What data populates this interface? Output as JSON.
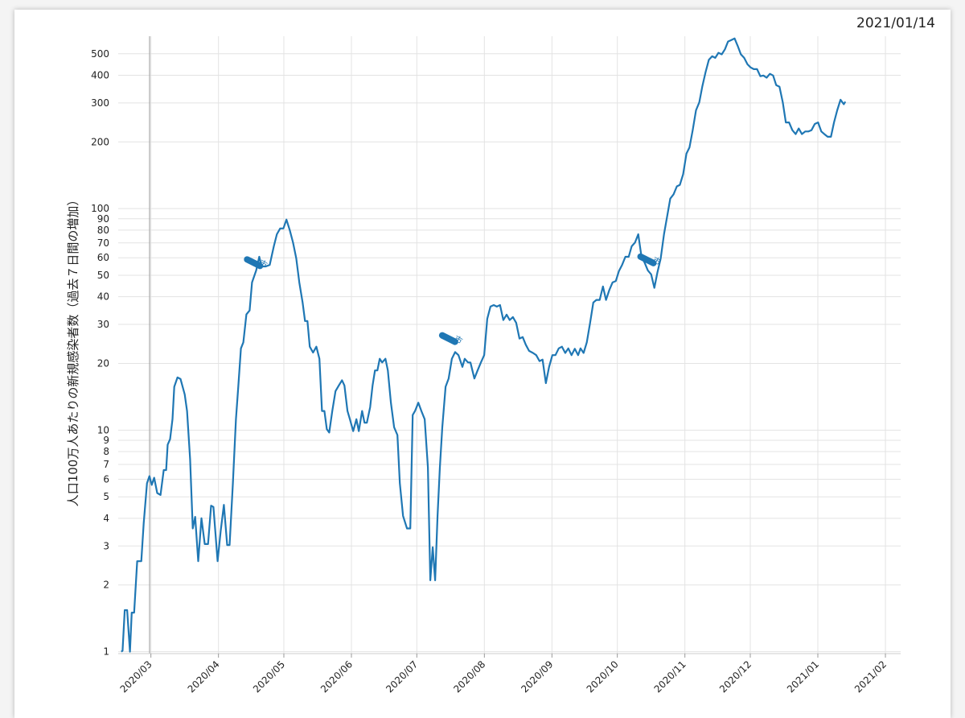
{
  "chart_data": {
    "type": "line",
    "title": "2021/01/14",
    "y_label": "人口100万人あたりの新規感染者数（過去７日間の増加）",
    "log_y": true,
    "grid": true,
    "xlim": [
      -15,
      344
    ],
    "ylim": [
      0.98,
      600
    ],
    "xticks": [
      {
        "value": 0,
        "label": "2020/03"
      },
      {
        "value": 31,
        "label": "2020/04"
      },
      {
        "value": 61,
        "label": "2020/05"
      },
      {
        "value": 92,
        "label": "2020/06"
      },
      {
        "value": 122,
        "label": "2020/07"
      },
      {
        "value": 153,
        "label": "2020/08"
      },
      {
        "value": 184,
        "label": "2020/09"
      },
      {
        "value": 214,
        "label": "2020/10"
      },
      {
        "value": 245,
        "label": "2020/11"
      },
      {
        "value": 275,
        "label": "2020/12"
      },
      {
        "value": 306,
        "label": "2021/01"
      },
      {
        "value": 337,
        "label": "2021/02"
      }
    ],
    "yticks": [
      1,
      2,
      3,
      4,
      5,
      6,
      7,
      8,
      9,
      10,
      20,
      30,
      40,
      50,
      60,
      70,
      80,
      90,
      100,
      200,
      300,
      400,
      500
    ],
    "x": [
      -13.6,
      -13,
      -12,
      -10.9,
      -9.6,
      -8.8,
      -7.7,
      -6.3,
      -4.4,
      -3.3,
      -1.8,
      -0.7,
      0.4,
      1.5,
      2.9,
      4.4,
      5.9,
      7,
      7.7,
      8.8,
      9.9,
      10.7,
      12.2,
      13.6,
      15.5,
      16.6,
      18,
      19.2,
      20.3,
      21.7,
      23.2,
      24.7,
      26.2,
      27.6,
      28.7,
      30.6,
      32,
      33.5,
      35,
      36.1,
      37.6,
      39,
      40.1,
      41.3,
      42.4,
      43.8,
      45.3,
      46.4,
      48.3,
      49.7,
      50.8,
      52.7,
      54.5,
      56.4,
      57.8,
      59.3,
      60.8,
      62.2,
      63.7,
      65.2,
      66.7,
      68.1,
      69.6,
      70.7,
      71.8,
      72.9,
      74.4,
      75.9,
      77.3,
      78.5,
      79.6,
      80.7,
      81.8,
      83.2,
      84.7,
      86.2,
      87.7,
      88.8,
      90.2,
      91.3,
      92.8,
      94.3,
      95.4,
      96.9,
      98,
      99.1,
      100.6,
      101.7,
      102.8,
      103.9,
      105,
      106.1,
      107.6,
      108.7,
      110.1,
      111.6,
      113.1,
      114.2,
      115.7,
      117.5,
      119,
      120.1,
      121.2,
      122.7,
      124.1,
      125.6,
      127.1,
      128.2,
      129.3,
      130.4,
      131.5,
      132.6,
      133.7,
      135.2,
      136.6,
      138.1,
      139.6,
      141.1,
      142.9,
      144,
      145.5,
      146.6,
      148.4,
      149.9,
      151.4,
      152.9,
      154.3,
      155.8,
      157.3,
      158.7,
      160.2,
      161.7,
      163.2,
      164.6,
      166.1,
      167.6,
      169.1,
      170.6,
      172,
      173.5,
      175.3,
      176.8,
      178.3,
      179.7,
      181.2,
      182.7,
      184.2,
      185.6,
      187.1,
      188.6,
      190.1,
      191.5,
      193,
      194.5,
      196,
      197.1,
      198.5,
      200,
      201.5,
      203,
      204.4,
      205.9,
      207.4,
      208.8,
      210.3,
      211.8,
      213.3,
      214.7,
      216.2,
      217.7,
      219.2,
      220.6,
      222.1,
      223.6,
      225.1,
      226.5,
      228,
      229.5,
      231,
      232.4,
      233.9,
      235.4,
      236.8,
      238.3,
      239.8,
      241.3,
      242.7,
      244.2,
      245.7,
      247.1,
      248.6,
      250.1,
      251.6,
      253,
      254.5,
      256,
      257.5,
      258.9,
      260.4,
      261.9,
      263.4,
      264.8,
      266.3,
      267.8,
      269.2,
      270.7,
      272.2,
      273.7,
      275.1,
      276.6,
      278.1,
      279.6,
      281,
      282.5,
      284,
      285.5,
      286.9,
      288.4,
      289.9,
      291.3,
      292.8,
      294.3,
      295.8,
      297.2,
      298.7,
      300.2,
      301.7,
      303.1,
      304.6,
      306.1,
      307.6,
      309,
      310.5,
      312,
      313.4,
      314.9,
      316.4,
      317.9,
      318.6
    ],
    "series": [
      {
        "color": "#1f77b4",
        "values": [
          1,
          1.01,
          1.54,
          1.54,
          1,
          1.5,
          1.5,
          2.56,
          2.56,
          3.8,
          5.76,
          6.2,
          5.66,
          6.1,
          5.2,
          5.1,
          6.6,
          6.6,
          8.6,
          9.1,
          11.2,
          15.7,
          17.3,
          17,
          14.5,
          12.2,
          7.4,
          3.6,
          4.06,
          2.56,
          4,
          3.06,
          3.06,
          4.56,
          4.5,
          2.56,
          3.5,
          4.6,
          3.03,
          3.03,
          5.76,
          11.2,
          15.7,
          23.4,
          24.9,
          33.3,
          34.7,
          46.4,
          52.6,
          60.6,
          54.8,
          54.8,
          55.7,
          67.6,
          76.6,
          81.4,
          81.4,
          89.2,
          80,
          70.2,
          59.6,
          46.4,
          37.7,
          31.1,
          31.1,
          23.8,
          22.4,
          23.8,
          21,
          12.2,
          12.2,
          10.1,
          9.76,
          12.2,
          15,
          15.9,
          16.8,
          15.9,
          12.2,
          11.2,
          9.9,
          11.2,
          9.9,
          12.2,
          10.8,
          10.8,
          12.7,
          15.9,
          18.6,
          18.6,
          21,
          20.2,
          21,
          18.6,
          13.3,
          10.3,
          9.5,
          5.76,
          4.1,
          3.6,
          3.6,
          11.7,
          12.2,
          13.3,
          12.2,
          11.2,
          6.8,
          2.1,
          2.96,
          2.1,
          4.1,
          6.8,
          10.3,
          15.7,
          17.1,
          21,
          22.5,
          21.8,
          19.3,
          21,
          20.2,
          20.2,
          17.1,
          18.6,
          20.2,
          21.8,
          31.8,
          36.1,
          36.7,
          36.1,
          36.7,
          31.4,
          33.2,
          31.4,
          32.4,
          30.5,
          25.9,
          26.3,
          24.3,
          22.8,
          22.3,
          21.8,
          20.5,
          20.8,
          16.3,
          19.3,
          21.8,
          21.8,
          23.4,
          23.8,
          22.3,
          23.4,
          21.8,
          23.3,
          21.8,
          23.4,
          22.3,
          24.9,
          30.5,
          37.7,
          38.7,
          38.7,
          44.5,
          38.7,
          42.8,
          46.4,
          47.1,
          52.2,
          55.7,
          60.6,
          60.6,
          67.6,
          70.2,
          76.6,
          60.6,
          57.1,
          52.6,
          50.5,
          43.9,
          51.5,
          59.6,
          76.6,
          91.8,
          111,
          116,
          126,
          128,
          143,
          177,
          189,
          226,
          278,
          302,
          357,
          413,
          470,
          487,
          479,
          505,
          497,
          524,
          568,
          577,
          586,
          543,
          497,
          479,
          448,
          434,
          426,
          426,
          396,
          399,
          390,
          406,
          399,
          361,
          355,
          302,
          245,
          245,
          226,
          217,
          230,
          217,
          223,
          223,
          226,
          241,
          245,
          223,
          217,
          211,
          211,
          245,
          278,
          310,
          296,
          304
        ]
      }
    ],
    "annotations": [
      {
        "x": 47.1,
        "y": 57,
        "text": "市"
      },
      {
        "x": 136.6,
        "y": 25.9,
        "text": "市"
      },
      {
        "x": 227.6,
        "y": 58.7,
        "text": "市"
      }
    ]
  }
}
